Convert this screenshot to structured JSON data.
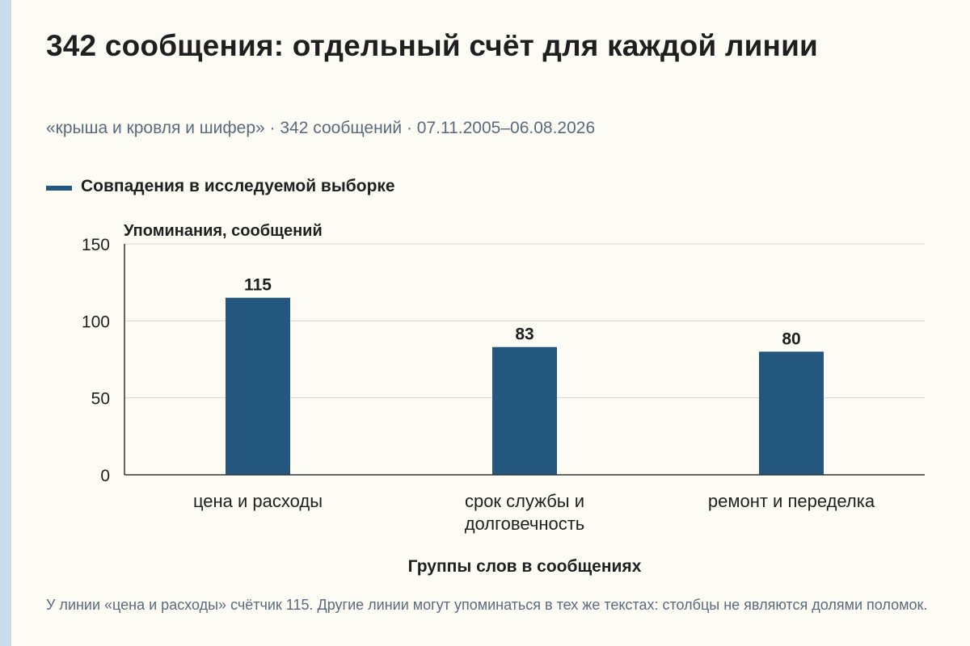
{
  "title": "342 сообщения: отдельный счёт для каждой линии",
  "subtitle": "«крыша и кровля и шифер» · 342 сообщений · 07.11.2005–06.08.2026",
  "legend": {
    "label": "Совпадения в исследуемой выборке"
  },
  "footnote": "У линии «цена и расходы» счётчик 115. Другие линии могут упоминаться в тех же текстах: столбцы не являются долями поломок.",
  "colors": {
    "bar": "#23577d",
    "grid": "#d6d6d0",
    "axis": "#333333",
    "text": "#1f1f1f",
    "muted": "#5b6a7c",
    "side_strip": "#c8dcec"
  },
  "chart_data": {
    "type": "bar",
    "categories": [
      [
        "цена и расходы"
      ],
      [
        "срок службы и",
        "долговечность"
      ],
      [
        "ремонт и переделка"
      ]
    ],
    "series": [
      {
        "name": "Совпадения в исследуемой выборке",
        "values": [
          115,
          83,
          80
        ]
      }
    ],
    "data_labels": [
      "115",
      "83",
      "80"
    ],
    "ylabel": "Упоминания, сообщений",
    "xlabel": "Группы слов в сообщениях",
    "ylim": [
      0,
      150
    ],
    "yticks": [
      0,
      50,
      100,
      150
    ],
    "grid": true,
    "legend_position": "top-left"
  }
}
